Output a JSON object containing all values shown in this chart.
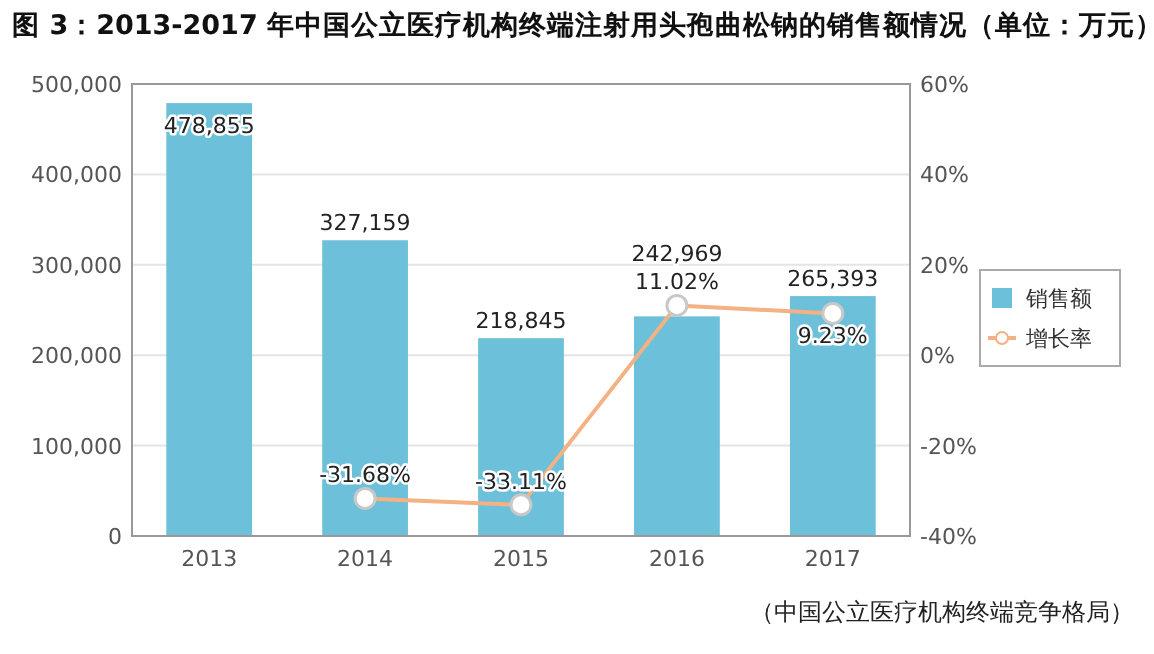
{
  "chart_data": {
    "type": "bar",
    "title": "图 3：2013-2017 年中国公立医疗机构终端注射用头孢曲松钠的销售额情况（单位：万元）",
    "categories": [
      "2013",
      "2014",
      "2015",
      "2016",
      "2017"
    ],
    "series": [
      {
        "name": "销售额",
        "color": "#6cc0d9",
        "values": [
          478855,
          327159,
          218845,
          242969,
          265393
        ],
        "value_labels": [
          "478,855",
          "327,159",
          "218,845",
          "242,969",
          "265,393"
        ]
      },
      {
        "name": "增长率",
        "type": "line",
        "axis": "y2",
        "color": "#f4b183",
        "values": [
          null,
          -31.68,
          -33.11,
          11.02,
          9.23
        ],
        "value_labels": [
          null,
          "-31.68%",
          "-33.11%",
          "11.02%",
          "9.23%"
        ]
      }
    ],
    "ylim": [
      0,
      500000
    ],
    "yticks": [
      {
        "value": 0,
        "label": "0"
      },
      {
        "value": 100000,
        "label": "100,000"
      },
      {
        "value": 200000,
        "label": "200,000"
      },
      {
        "value": 300000,
        "label": "300,000"
      },
      {
        "value": 400000,
        "label": "400,000"
      },
      {
        "value": 500000,
        "label": "500,000"
      }
    ],
    "y2lim": [
      -40,
      60
    ],
    "y2ticks": [
      {
        "value": -40,
        "label": "-40%"
      },
      {
        "value": -20,
        "label": "-20%"
      },
      {
        "value": 0,
        "label": "0%"
      },
      {
        "value": 20,
        "label": "20%"
      },
      {
        "value": 40,
        "label": "40%"
      },
      {
        "value": 60,
        "label": "60%"
      }
    ],
    "grid": "y",
    "legend": "right",
    "marker": "circle",
    "annotations": [
      "（中国公立医疗机构终端竞争格局）"
    ]
  }
}
